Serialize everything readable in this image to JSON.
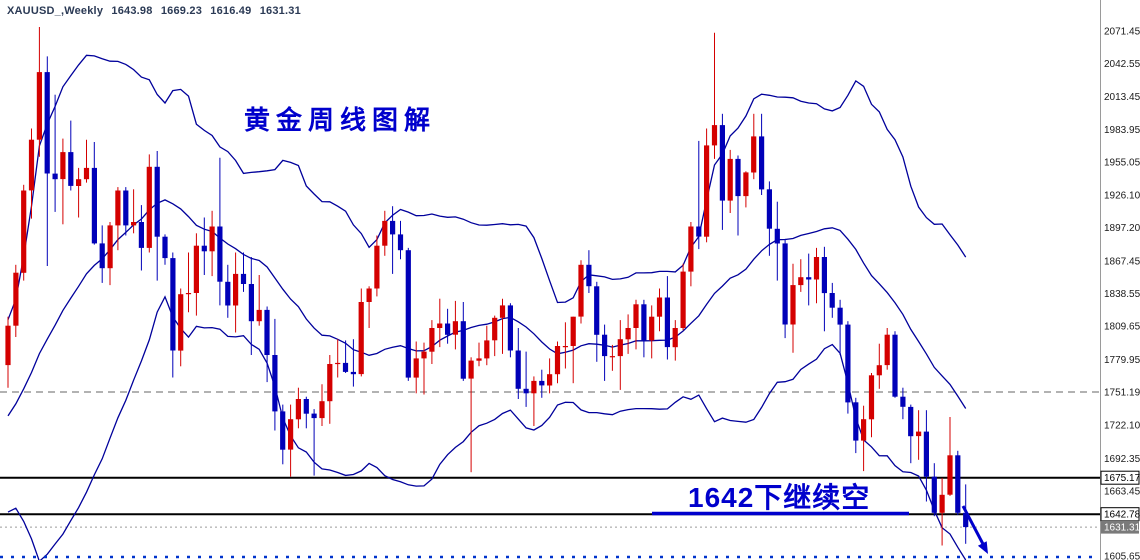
{
  "header": {
    "symbol": "XAUUSD_,Weekly",
    "open": "1643.98",
    "high": "1669.23",
    "low": "1616.49",
    "close": "1631.31"
  },
  "annotations": {
    "chart_title": "黄金周线图解",
    "trade_note": "1642下继续空"
  },
  "colors": {
    "annotation": "#0000CC",
    "header_text": "#2b3a55"
  },
  "chart_data": {
    "type": "candlestick",
    "symbol": "XAUUSD",
    "timeframe": "Weekly",
    "title": "XAUUSD Weekly with Bollinger Bands",
    "indicator": {
      "name": "Bollinger Bands",
      "period": 20,
      "deviation": 2
    },
    "colors": {
      "bull": "#D40000",
      "bear": "#0000B8",
      "band": "#00009B",
      "time_dots": "#0033CC"
    },
    "y_axis_ticks": [
      2071.45,
      2042.55,
      2013.45,
      1983.95,
      1955.05,
      1926.1,
      1897.2,
      1867.45,
      1838.55,
      1809.65,
      1779.95,
      1722.1,
      1692.35,
      1663.45,
      1605.65
    ],
    "levels": [
      {
        "price": 1751.19,
        "style": "dashed",
        "color": "#666666",
        "label": "1751.19",
        "label_style": "plain"
      },
      {
        "price": 1675.17,
        "style": "solid",
        "color": "#000000",
        "label": "1675.17",
        "label_style": "box"
      },
      {
        "price": 1642.78,
        "style": "solid",
        "color": "#000000",
        "label": "1642.78",
        "label_style": "box"
      },
      {
        "price": 1631.31,
        "style": "bid",
        "color": "#7A7A7A",
        "label": "1631.31",
        "label_style": "bid-box"
      }
    ],
    "pre_history_closes": [
      1621,
      1644,
      1663,
      1685,
      1700,
      1687,
      1694,
      1702,
      1715,
      1730,
      1728,
      1735,
      1743,
      1738,
      1751,
      1771,
      1769,
      1775,
      1788,
      1772
    ],
    "candles": [
      [
        1775,
        1818,
        1755,
        1810
      ],
      [
        1810,
        1864,
        1800,
        1857
      ],
      [
        1857,
        1935,
        1850,
        1930
      ],
      [
        1930,
        1985,
        1905,
        1975
      ],
      [
        1975,
        2075,
        1960,
        2035
      ],
      [
        2035,
        2049,
        1863,
        1945
      ],
      [
        1945,
        2015,
        1911,
        1940
      ],
      [
        1940,
        1976,
        1900,
        1964
      ],
      [
        1964,
        1992,
        1930,
        1934
      ],
      [
        1934,
        1950,
        1906,
        1940
      ],
      [
        1940,
        1975,
        1937,
        1950
      ],
      [
        1950,
        1973,
        1882,
        1883
      ],
      [
        1883,
        1899,
        1848,
        1861
      ],
      [
        1861,
        1902,
        1846,
        1899
      ],
      [
        1899,
        1933,
        1877,
        1930
      ],
      [
        1930,
        1933,
        1890,
        1899
      ],
      [
        1899,
        1931,
        1892,
        1902
      ],
      [
        1902,
        1917,
        1859,
        1879
      ],
      [
        1879,
        1962,
        1875,
        1951
      ],
      [
        1951,
        1965,
        1850,
        1889
      ],
      [
        1889,
        1891,
        1864,
        1870
      ],
      [
        1870,
        1875,
        1764,
        1788
      ],
      [
        1788,
        1843,
        1774,
        1838
      ],
      [
        1838,
        1875,
        1822,
        1839
      ],
      [
        1839,
        1892,
        1819,
        1881
      ],
      [
        1881,
        1906,
        1855,
        1876
      ],
      [
        1876,
        1912,
        1854,
        1898
      ],
      [
        1898,
        1959,
        1828,
        1849
      ],
      [
        1849,
        1864,
        1817,
        1828
      ],
      [
        1828,
        1875,
        1804,
        1856
      ],
      [
        1856,
        1875,
        1840,
        1847
      ],
      [
        1847,
        1871,
        1784,
        1814
      ],
      [
        1814,
        1855,
        1810,
        1824
      ],
      [
        1824,
        1827,
        1760,
        1784
      ],
      [
        1784,
        1816,
        1717,
        1734
      ],
      [
        1734,
        1740,
        1687,
        1700
      ],
      [
        1700,
        1740,
        1676,
        1727
      ],
      [
        1727,
        1755,
        1719,
        1745
      ],
      [
        1745,
        1747,
        1719,
        1732
      ],
      [
        1732,
        1736,
        1677,
        1728
      ],
      [
        1728,
        1758,
        1721,
        1743
      ],
      [
        1743,
        1784,
        1723,
        1776
      ],
      [
        1776,
        1798,
        1764,
        1777
      ],
      [
        1777,
        1797,
        1768,
        1769
      ],
      [
        1769,
        1798,
        1756,
        1767
      ],
      [
        1767,
        1843,
        1765,
        1831
      ],
      [
        1831,
        1845,
        1808,
        1843
      ],
      [
        1843,
        1890,
        1836,
        1881
      ],
      [
        1881,
        1912,
        1872,
        1903
      ],
      [
        1903,
        1916,
        1856,
        1891
      ],
      [
        1891,
        1903,
        1869,
        1877
      ],
      [
        1877,
        1879,
        1761,
        1764
      ],
      [
        1764,
        1796,
        1750,
        1781
      ],
      [
        1781,
        1795,
        1749,
        1787
      ],
      [
        1787,
        1815,
        1776,
        1808
      ],
      [
        1808,
        1834,
        1791,
        1812
      ],
      [
        1812,
        1825,
        1794,
        1802
      ],
      [
        1802,
        1832,
        1789,
        1814
      ],
      [
        1814,
        1831,
        1761,
        1763
      ],
      [
        1763,
        1782,
        1680,
        1779
      ],
      [
        1779,
        1795,
        1774,
        1781
      ],
      [
        1781,
        1810,
        1775,
        1797
      ],
      [
        1797,
        1819,
        1783,
        1817
      ],
      [
        1817,
        1834,
        1785,
        1828
      ],
      [
        1828,
        1830,
        1782,
        1788
      ],
      [
        1788,
        1808,
        1745,
        1754
      ],
      [
        1754,
        1787,
        1738,
        1750
      ],
      [
        1750,
        1765,
        1721,
        1761
      ],
      [
        1761,
        1771,
        1746,
        1757
      ],
      [
        1757,
        1781,
        1750,
        1767
      ],
      [
        1767,
        1796,
        1759,
        1792
      ],
      [
        1792,
        1813,
        1772,
        1792
      ],
      [
        1792,
        1818,
        1759,
        1818
      ],
      [
        1818,
        1868,
        1812,
        1864
      ],
      [
        1864,
        1877,
        1839,
        1845
      ],
      [
        1845,
        1849,
        1778,
        1802
      ],
      [
        1802,
        1811,
        1761,
        1783
      ],
      [
        1783,
        1793,
        1770,
        1783
      ],
      [
        1783,
        1815,
        1753,
        1798
      ],
      [
        1798,
        1820,
        1785,
        1808
      ],
      [
        1808,
        1833,
        1789,
        1829
      ],
      [
        1829,
        1833,
        1782,
        1797
      ],
      [
        1797,
        1828,
        1781,
        1818
      ],
      [
        1818,
        1843,
        1805,
        1835
      ],
      [
        1835,
        1854,
        1780,
        1791
      ],
      [
        1791,
        1815,
        1779,
        1808
      ],
      [
        1808,
        1865,
        1806,
        1858
      ],
      [
        1858,
        1902,
        1845,
        1898
      ],
      [
        1898,
        1974,
        1878,
        1889
      ],
      [
        1889,
        1985,
        1884,
        1970
      ],
      [
        1970,
        2070,
        1958,
        1988
      ],
      [
        1988,
        1998,
        1895,
        1921
      ],
      [
        1921,
        1966,
        1910,
        1958
      ],
      [
        1958,
        1961,
        1890,
        1925
      ],
      [
        1925,
        1947,
        1915,
        1946
      ],
      [
        1946,
        1998,
        1940,
        1978
      ],
      [
        1978,
        1998,
        1926,
        1931
      ],
      [
        1931,
        1938,
        1872,
        1896
      ],
      [
        1896,
        1920,
        1850,
        1883
      ],
      [
        1883,
        1887,
        1799,
        1811
      ],
      [
        1811,
        1865,
        1786,
        1846
      ],
      [
        1846,
        1869,
        1840,
        1853
      ],
      [
        1853,
        1874,
        1828,
        1851
      ],
      [
        1851,
        1879,
        1830,
        1871
      ],
      [
        1871,
        1880,
        1805,
        1839
      ],
      [
        1839,
        1848,
        1817,
        1826
      ],
      [
        1826,
        1833,
        1784,
        1811
      ],
      [
        1811,
        1814,
        1732,
        1742
      ],
      [
        1742,
        1746,
        1697,
        1708
      ],
      [
        1708,
        1739,
        1681,
        1727
      ],
      [
        1727,
        1768,
        1711,
        1766
      ],
      [
        1766,
        1794,
        1754,
        1775
      ],
      [
        1775,
        1808,
        1771,
        1802
      ],
      [
        1802,
        1805,
        1746,
        1747
      ],
      [
        1747,
        1755,
        1727,
        1738
      ],
      [
        1738,
        1740,
        1688,
        1712
      ],
      [
        1712,
        1735,
        1691,
        1716
      ],
      [
        1716,
        1735,
        1654,
        1676
      ],
      [
        1676,
        1688,
        1641,
        1644
      ],
      [
        1644,
        1675,
        1615,
        1660
      ],
      [
        1660,
        1729,
        1659,
        1695
      ],
      [
        1695,
        1699,
        1642,
        1644
      ],
      [
        1643.98,
        1669.23,
        1616.49,
        1631.31
      ]
    ]
  }
}
